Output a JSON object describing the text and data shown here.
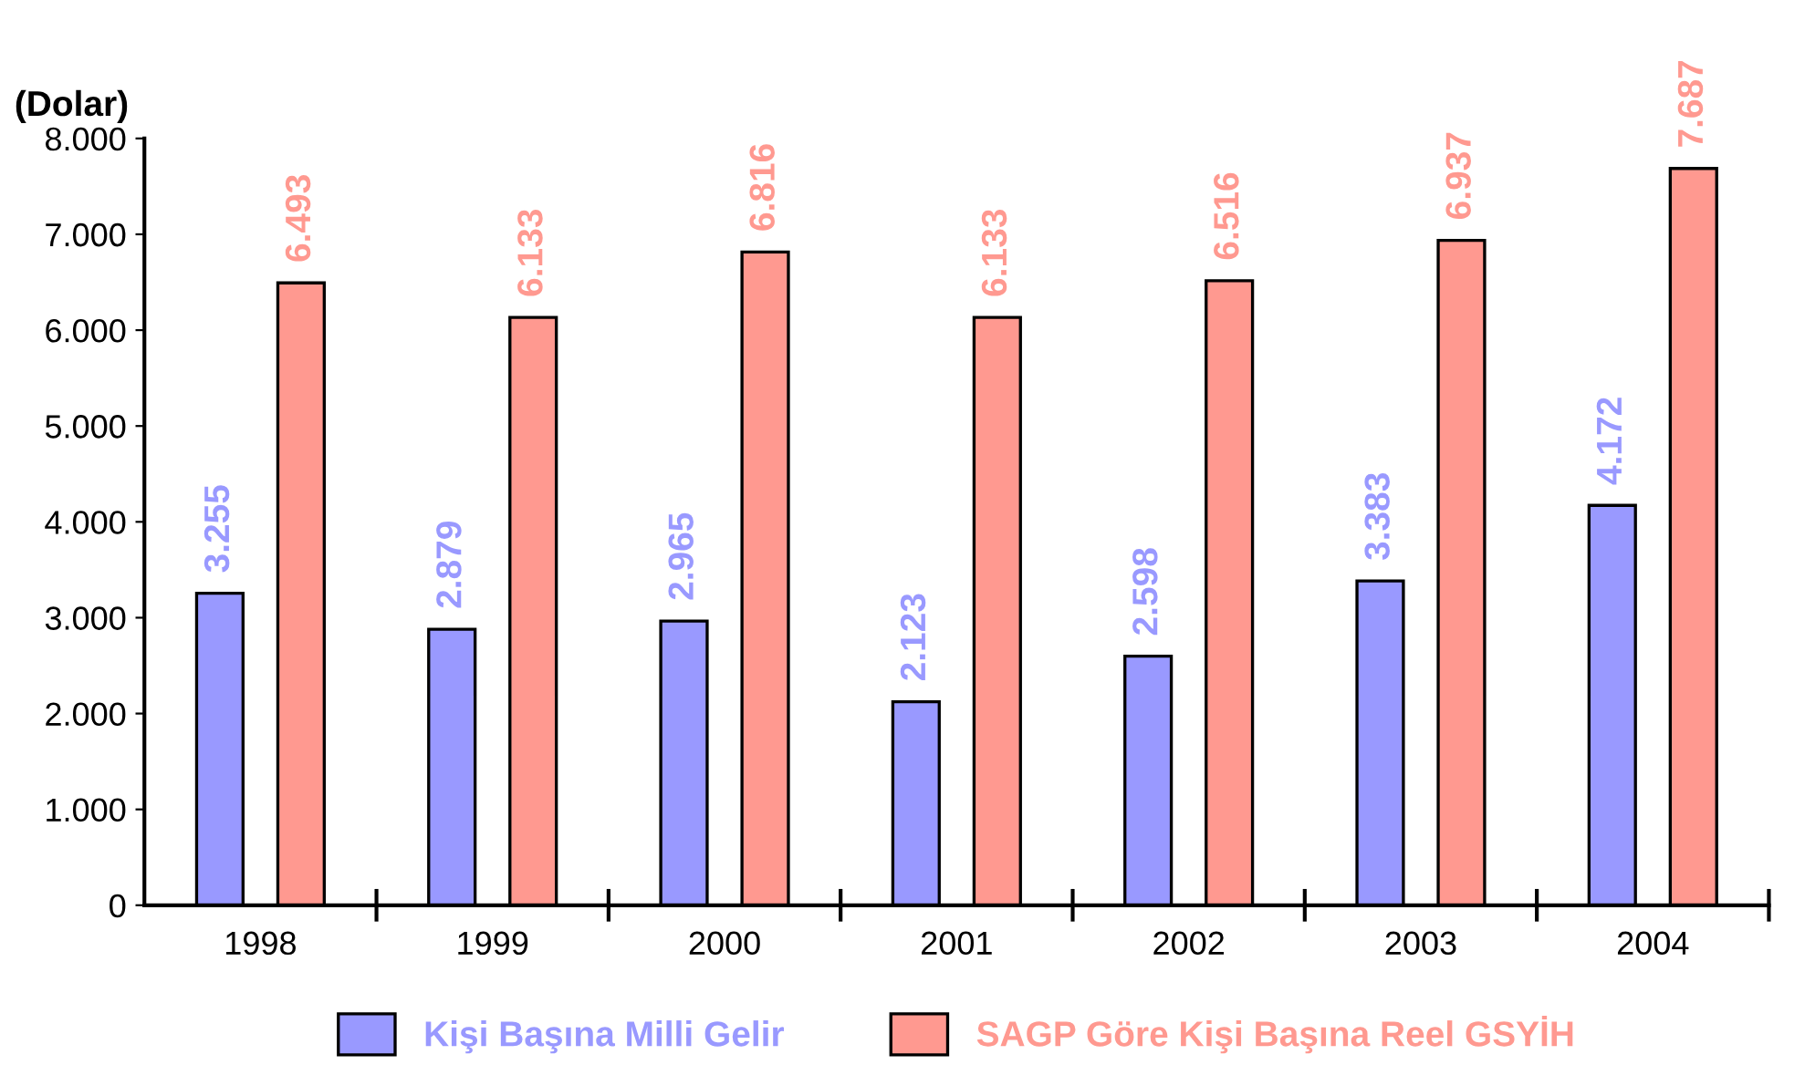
{
  "chart_data": {
    "type": "bar",
    "ylabel": "(Dolar)",
    "categories": [
      "1998",
      "1999",
      "2000",
      "2001",
      "2002",
      "2003",
      "2004"
    ],
    "series": [
      {
        "name": "Kişi Başına Milli Gelir",
        "color": "#9999ff",
        "values": [
          3255,
          2879,
          2965,
          2123,
          2598,
          3383,
          4172
        ],
        "value_labels": [
          "3.255",
          "2.879",
          "2.965",
          "2.123",
          "2.598",
          "3.383",
          "4.172"
        ]
      },
      {
        "name": "SAGP Göre Kişi Başına Reel GSYİH",
        "color": "#ff9990",
        "values": [
          6493,
          6133,
          6816,
          6133,
          6516,
          6937,
          7687
        ],
        "value_labels": [
          "6.493",
          "6.133",
          "6.816",
          "6.133",
          "6.516",
          "6.937",
          "7.687"
        ]
      }
    ],
    "ylim": [
      0,
      8000
    ],
    "yticks": [
      0,
      {
        "value": 1000,
        "label": "1.000"
      },
      {
        "value": 2000,
        "label": "2.000"
      },
      {
        "value": 3000,
        "label": "3.000"
      },
      {
        "value": 4000,
        "label": "4.000"
      },
      {
        "value": 5000,
        "label": "5.000"
      },
      {
        "value": 6000,
        "label": "6.000"
      },
      {
        "value": 7000,
        "label": "7.000"
      },
      {
        "value": 8000,
        "label": "8.000"
      }
    ],
    "grid": false,
    "legend": "bottom"
  }
}
